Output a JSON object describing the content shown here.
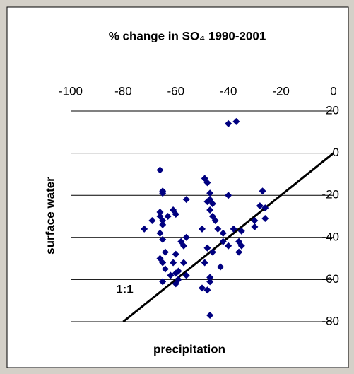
{
  "chart_data": {
    "type": "scatter",
    "title": "% change in SO₄ 1990-2001",
    "x_label": "precipitation",
    "y_label": "surface water",
    "xaxis_position": "top",
    "xlim": [
      -100,
      0
    ],
    "xticks": [
      -100,
      -80,
      -60,
      -40,
      -20,
      0
    ],
    "ylim": [
      -80,
      20
    ],
    "yticks": [
      20,
      0,
      -20,
      -40,
      -60,
      -80
    ],
    "grid": true,
    "series": [
      {
        "color": "#000080",
        "x": [
          -37,
          -40,
          -66,
          -65,
          -65,
          -72,
          -69,
          -66,
          -66,
          -65,
          -65,
          -63,
          -61,
          -60,
          -66,
          -65,
          -64,
          -66,
          -65,
          -64,
          -61,
          -60,
          -60,
          -59,
          -59,
          -60,
          -62,
          -58,
          -57,
          -56,
          -56,
          -57,
          -56,
          -65,
          -49,
          -48,
          -47,
          -47,
          -46,
          -47,
          -48,
          -46,
          -45,
          -50,
          -48,
          -46,
          -49,
          -47,
          -50,
          -48,
          -47,
          -47,
          -44,
          -42,
          -42,
          -43,
          -40,
          -38,
          -36,
          -35,
          -36,
          -35,
          -30,
          -30,
          -27,
          -26,
          -28,
          -26,
          -40
        ],
        "values": [
          15,
          14,
          -8,
          -18,
          -19,
          -36,
          -32,
          -28,
          -30,
          -32,
          -34,
          -30,
          -27,
          -29,
          -38,
          -41,
          -47,
          -50,
          -52,
          -55,
          -52,
          -48,
          -57,
          -56,
          -60,
          -62,
          -58,
          -42,
          -44,
          -40,
          -22,
          -52,
          -58,
          -61,
          -12,
          -14,
          -19,
          -22,
          -24,
          -27,
          -23,
          -30,
          -32,
          -36,
          -45,
          -47,
          -52,
          -59,
          -64,
          -65,
          -61,
          -77,
          -36,
          -38,
          -42,
          -54,
          -20,
          -36,
          -42,
          -44,
          -47,
          -37,
          -32,
          -35,
          -18,
          -26,
          -25,
          -31,
          -44
        ]
      }
    ],
    "reference_line": {
      "label": "1:1",
      "from": [
        -80,
        -80
      ],
      "to": [
        0,
        0
      ],
      "color": "#000000"
    }
  }
}
